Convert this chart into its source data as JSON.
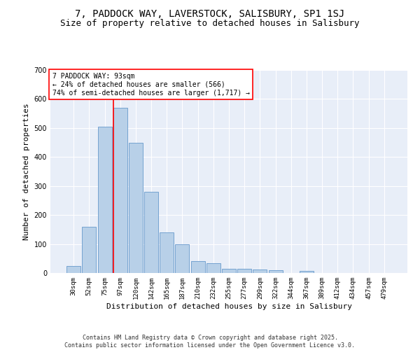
{
  "title_line1": "7, PADDOCK WAY, LAVERSTOCK, SALISBURY, SP1 1SJ",
  "title_line2": "Size of property relative to detached houses in Salisbury",
  "xlabel": "Distribution of detached houses by size in Salisbury",
  "ylabel": "Number of detached properties",
  "categories": [
    "30sqm",
    "52sqm",
    "75sqm",
    "97sqm",
    "120sqm",
    "142sqm",
    "165sqm",
    "187sqm",
    "210sqm",
    "232sqm",
    "255sqm",
    "277sqm",
    "299sqm",
    "322sqm",
    "344sqm",
    "367sqm",
    "389sqm",
    "412sqm",
    "434sqm",
    "457sqm",
    "479sqm"
  ],
  "values": [
    25,
    160,
    505,
    570,
    450,
    280,
    140,
    100,
    40,
    35,
    15,
    15,
    11,
    10,
    0,
    7,
    0,
    0,
    0,
    0,
    0
  ],
  "bar_color": "#b8d0e8",
  "bar_edge_color": "#6699cc",
  "vline_index": 3,
  "vline_color": "red",
  "annotation_text": "7 PADDOCK WAY: 93sqm\n← 24% of detached houses are smaller (566)\n74% of semi-detached houses are larger (1,717) →",
  "annotation_box_color": "white",
  "annotation_box_edge_color": "red",
  "ylim": [
    0,
    700
  ],
  "yticks": [
    0,
    100,
    200,
    300,
    400,
    500,
    600,
    700
  ],
  "background_color": "#e8eef8",
  "footnote": "Contains HM Land Registry data © Crown copyright and database right 2025.\nContains public sector information licensed under the Open Government Licence v3.0.",
  "title_fontsize": 10,
  "subtitle_fontsize": 9,
  "axis_label_fontsize": 8,
  "tick_fontsize": 6.5,
  "annotation_fontsize": 7,
  "footnote_fontsize": 6
}
